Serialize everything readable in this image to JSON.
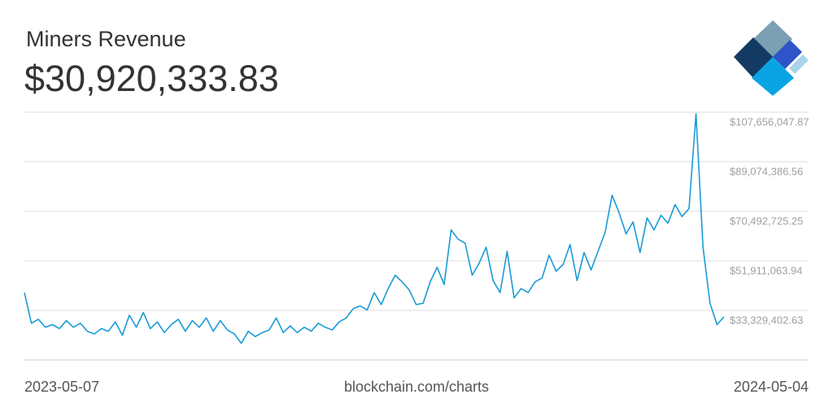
{
  "chart_data": {
    "type": "line",
    "title": "Miners Revenue",
    "current_value_label": "$30,920,333.83",
    "start_label": "2023-05-07",
    "end_label": "2024-05-04",
    "source": "blockchain.com/charts",
    "color": "#1a9bd7",
    "grid": true,
    "ylim": [
      14747741.32,
      107656047.87
    ],
    "yticks": [
      {
        "value": 33329402.63,
        "label": "$33,329,402.63"
      },
      {
        "value": 51911063.94,
        "label": "$51,911,063.94"
      },
      {
        "value": 70492725.25,
        "label": "$70,492,725.25"
      },
      {
        "value": 89074386.56,
        "label": "$89,074,386.56"
      },
      {
        "value": 107656047.87,
        "label": "$107,656,047.87"
      }
    ],
    "values": [
      40000000,
      28500000,
      30000000,
      27000000,
      28000000,
      26500000,
      29500000,
      27000000,
      28500000,
      25500000,
      24500000,
      26500000,
      25500000,
      29000000,
      24000000,
      31500000,
      27000000,
      32500000,
      26500000,
      29000000,
      25000000,
      28000000,
      30000000,
      25500000,
      29500000,
      27000000,
      30500000,
      25500000,
      29500000,
      26000000,
      24500000,
      21000000,
      25500000,
      23500000,
      25000000,
      26000000,
      30500000,
      25000000,
      27500000,
      25000000,
      27000000,
      25500000,
      28500000,
      27000000,
      26000000,
      29000000,
      30500000,
      34000000,
      35000000,
      33500000,
      40000000,
      35500000,
      41500000,
      46500000,
      44000000,
      41000000,
      35500000,
      36000000,
      44000000,
      49500000,
      43000000,
      63500000,
      60000000,
      58500000,
      46500000,
      51000000,
      57000000,
      44500000,
      40000000,
      55500000,
      38000000,
      41500000,
      40000000,
      44000000,
      45500000,
      54000000,
      48000000,
      50500000,
      58000000,
      44500000,
      55000000,
      48500000,
      55500000,
      62500000,
      76500000,
      70000000,
      62000000,
      66500000,
      55000000,
      68000000,
      63500000,
      69000000,
      66000000,
      73000000,
      68500000,
      71500000,
      107000000,
      57000000,
      36000000,
      28000000,
      30920333.83
    ]
  }
}
